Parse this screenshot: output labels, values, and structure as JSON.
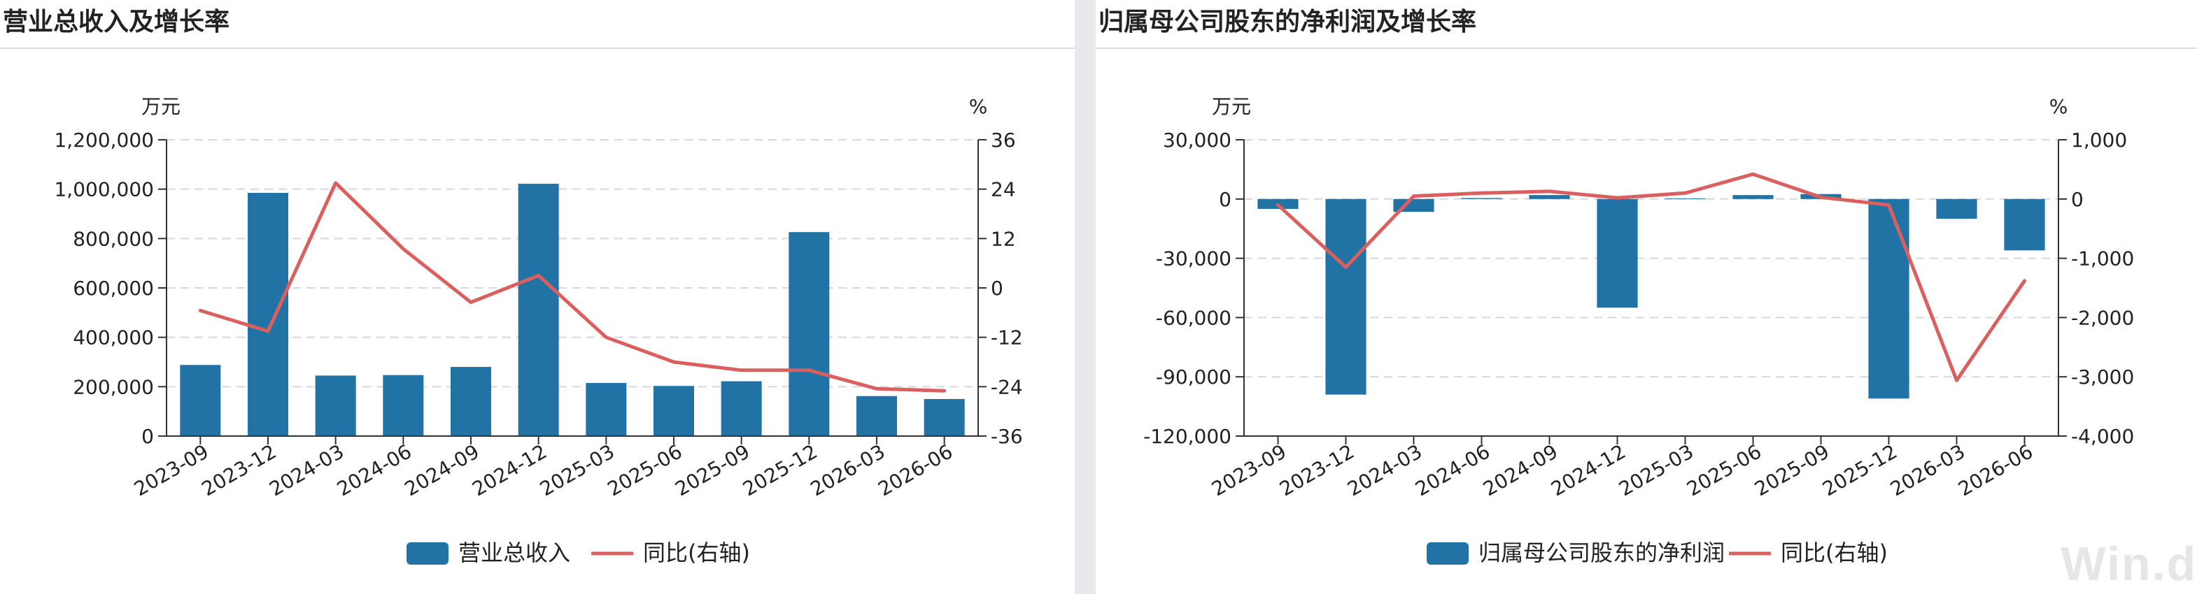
{
  "colors": {
    "bar": "#2273a5",
    "line": "#d9605f",
    "grid": "#d8d8d8",
    "axis": "#333333",
    "text": "#222222"
  },
  "watermark": "Win.d",
  "chart_data": [
    {
      "type": "bar",
      "title": "营业总收入及增长率",
      "left_unit": "万元",
      "right_unit": "%",
      "categories": [
        "2023-09",
        "2023-12",
        "2024-03",
        "2024-06",
        "2024-09",
        "2024-12",
        "2025-03",
        "2025-06",
        "2025-09",
        "2025-12",
        "2026-03",
        "2026-06"
      ],
      "ylim": [
        0,
        1200000
      ],
      "y_ticks": [
        0,
        200000,
        400000,
        600000,
        800000,
        1000000,
        1200000
      ],
      "y_tick_labels": [
        "0",
        "200,000",
        "400,000",
        "600,000",
        "800,000",
        "1,000,000",
        "1,200,000"
      ],
      "y2lim": [
        -36,
        36
      ],
      "y2_ticks": [
        -36,
        -24,
        -12,
        0,
        12,
        24,
        36
      ],
      "y2_tick_labels": [
        "-36",
        "-24",
        "-12",
        "0",
        "12",
        "24",
        "36"
      ],
      "grid": true,
      "legend_position": "bottom-center",
      "series": [
        {
          "name": "营业总收入",
          "type": "bar",
          "axis": "left",
          "values": [
            288000,
            985000,
            245000,
            247000,
            280000,
            1022000,
            215000,
            203000,
            222000,
            826000,
            162000,
            150000
          ]
        },
        {
          "name": "同比(右轴)",
          "type": "line",
          "axis": "right",
          "values": [
            -5.5,
            -10.5,
            25.5,
            9.5,
            -3.5,
            3.0,
            -12.0,
            -18.0,
            -20.0,
            -20.0,
            -24.5,
            -25.0
          ]
        }
      ]
    },
    {
      "type": "bar",
      "title": "归属母公司股东的净利润及增长率",
      "left_unit": "万元",
      "right_unit": "%",
      "categories": [
        "2023-09",
        "2023-12",
        "2024-03",
        "2024-06",
        "2024-09",
        "2024-12",
        "2025-03",
        "2025-06",
        "2025-09",
        "2025-12",
        "2026-03",
        "2026-06"
      ],
      "ylim": [
        -120000,
        30000
      ],
      "y_ticks": [
        -120000,
        -90000,
        -60000,
        -30000,
        0,
        30000
      ],
      "y_tick_labels": [
        "-120,000",
        "-90,000",
        "-60,000",
        "-30,000",
        "0",
        "30,000"
      ],
      "y2lim": [
        -4000,
        1000
      ],
      "y2_ticks": [
        -4000,
        -3000,
        -2000,
        -1000,
        0,
        1000
      ],
      "y2_tick_labels": [
        "-4,000",
        "-3,000",
        "-2,000",
        "-1,000",
        "0",
        "1,000"
      ],
      "grid": true,
      "legend_position": "bottom-center",
      "series": [
        {
          "name": "归属母公司股东的净利润",
          "type": "bar",
          "axis": "left",
          "values": [
            -5000,
            -99000,
            -6500,
            500,
            2000,
            -55000,
            300,
            2000,
            2500,
            -101000,
            -10000,
            -26000
          ]
        },
        {
          "name": "同比(右轴)",
          "type": "line",
          "axis": "right",
          "values": [
            -100,
            -1150,
            50,
            100,
            130,
            20,
            100,
            420,
            30,
            -100,
            -3060,
            -1380
          ]
        }
      ]
    }
  ]
}
